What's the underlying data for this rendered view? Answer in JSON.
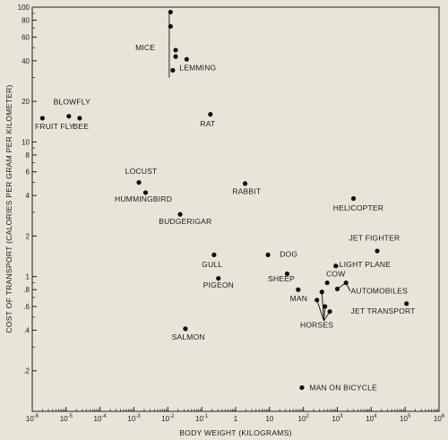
{
  "chart_data": {
    "type": "scatter",
    "xlabel": "BODY WEIGHT (KILOGRAMS)",
    "ylabel": "COST OF TRANSPORT (CALORIES PER GRAM PER KILOMETER)",
    "xscale": "log",
    "yscale": "log",
    "xlim": [
      1e-06,
      1000000.0
    ],
    "ylim": [
      0.1,
      100
    ],
    "grid": false,
    "x_ticks": [
      {
        "value": 1e-06,
        "base": "10",
        "exp": "-6"
      },
      {
        "value": 1e-05,
        "base": "10",
        "exp": "-5"
      },
      {
        "value": 0.0001,
        "base": "10",
        "exp": "-4"
      },
      {
        "value": 0.001,
        "base": "10",
        "exp": "-3"
      },
      {
        "value": 0.01,
        "base": "10",
        "exp": "-2"
      },
      {
        "value": 0.1,
        "base": "10",
        "exp": "-1"
      },
      {
        "value": 1,
        "base": "1",
        "exp": ""
      },
      {
        "value": 10,
        "base": "10",
        "exp": ""
      },
      {
        "value": 100,
        "base": "10",
        "exp": "2"
      },
      {
        "value": 1000,
        "base": "10",
        "exp": "3"
      },
      {
        "value": 10000.0,
        "base": "10",
        "exp": "4"
      },
      {
        "value": 100000.0,
        "base": "10",
        "exp": "5"
      },
      {
        "value": 1000000.0,
        "base": "10",
        "exp": "6"
      }
    ],
    "y_ticks": [
      {
        "value": 100,
        "label": "100"
      },
      {
        "value": 80,
        "label": "80"
      },
      {
        "value": 60,
        "label": "60"
      },
      {
        "value": 40,
        "label": "40"
      },
      {
        "value": 20,
        "label": "20"
      },
      {
        "value": 10,
        "label": "10"
      },
      {
        "value": 8,
        "label": "8"
      },
      {
        "value": 6,
        "label": "6"
      },
      {
        "value": 4,
        "label": "4"
      },
      {
        "value": 2,
        "label": "2"
      },
      {
        "value": 1,
        "label": "1"
      },
      {
        "value": 0.8,
        "label": ".8"
      },
      {
        "value": 0.6,
        "label": ".6"
      },
      {
        "value": 0.4,
        "label": ".4"
      },
      {
        "value": 0.2,
        "label": ".2"
      }
    ],
    "points": [
      {
        "x": 0.012,
        "y": 92,
        "group": "MICE"
      },
      {
        "x": 0.012,
        "y": 72,
        "group": "MICE"
      },
      {
        "x": 0.017,
        "y": 48,
        "group": "MICE"
      },
      {
        "x": 0.017,
        "y": 43,
        "group": "MICE"
      },
      {
        "x": 0.036,
        "y": 41,
        "group": "LEMMING"
      },
      {
        "x": 0.014,
        "y": 34,
        "group": "LEMMING"
      },
      {
        "x": 2e-06,
        "y": 15,
        "group": "FRUIT FLY"
      },
      {
        "x": 1.2e-05,
        "y": 15.5,
        "group": "BLOWFLY"
      },
      {
        "x": 2.5e-05,
        "y": 15,
        "group": "BEE"
      },
      {
        "x": 0.18,
        "y": 16,
        "group": "RAT"
      },
      {
        "x": 0.0014,
        "y": 5,
        "group": "LOCUST"
      },
      {
        "x": 0.0022,
        "y": 4.2,
        "group": "HUMMINGBIRD"
      },
      {
        "x": 0.023,
        "y": 2.9,
        "group": "BUDGERIGAR"
      },
      {
        "x": 1.9,
        "y": 4.9,
        "group": "RABBIT"
      },
      {
        "x": 3000,
        "y": 3.8,
        "group": "HELICOPTER"
      },
      {
        "x": 15000,
        "y": 1.55,
        "group": "JET FIGHTER"
      },
      {
        "x": 900,
        "y": 1.2,
        "group": "LIGHT PLANE"
      },
      {
        "x": 0.23,
        "y": 1.45,
        "group": "GULL"
      },
      {
        "x": 0.31,
        "y": 0.97,
        "group": "PIGEON"
      },
      {
        "x": 9,
        "y": 1.45,
        "group": "DOG"
      },
      {
        "x": 33,
        "y": 1.05,
        "group": "SHEEP"
      },
      {
        "x": 70,
        "y": 0.8,
        "group": "MAN"
      },
      {
        "x": 250,
        "y": 0.67,
        "group": "HORSES"
      },
      {
        "x": 350,
        "y": 0.77,
        "group": "HORSES"
      },
      {
        "x": 430,
        "y": 0.6,
        "group": "HORSES"
      },
      {
        "x": 600,
        "y": 0.55,
        "group": "HORSES"
      },
      {
        "x": 500,
        "y": 0.9,
        "group": "COW"
      },
      {
        "x": 1000,
        "y": 0.81,
        "group": "AUTOMOBILES"
      },
      {
        "x": 1800,
        "y": 0.9,
        "group": "AUTOMOBILES"
      },
      {
        "x": 110000,
        "y": 0.63,
        "group": "JET TRANSPORT"
      },
      {
        "x": 0.033,
        "y": 0.41,
        "group": "SALMON"
      },
      {
        "x": 90,
        "y": 0.15,
        "group": "MAN ON BICYCLE"
      }
    ],
    "labels": [
      {
        "text": "MICE",
        "x": 0.0011,
        "y": 48
      },
      {
        "text": "LEMMING",
        "x": 0.022,
        "y": 34
      },
      {
        "text": "BLOWFLY",
        "x": 4.2e-06,
        "y": 19
      },
      {
        "text": "FRUIT FLY",
        "x": 1.2e-06,
        "y": 12.5
      },
      {
        "text": "BEE",
        "x": 1.6e-05,
        "y": 12.5
      },
      {
        "text": "RAT",
        "x": 0.09,
        "y": 13
      },
      {
        "text": "LOCUST",
        "x": 0.00055,
        "y": 5.8
      },
      {
        "text": "HUMMINGBIRD",
        "x": 0.00027,
        "y": 3.6
      },
      {
        "text": "BUDGERIGAR",
        "x": 0.0054,
        "y": 2.45
      },
      {
        "text": "RABBIT",
        "x": 0.8,
        "y": 4.1
      },
      {
        "text": "HELICOPTER",
        "x": 750,
        "y": 3.1
      },
      {
        "text": "JET FIGHTER",
        "x": 2200,
        "y": 1.85
      },
      {
        "text": "LIGHT PLANE",
        "x": 1150,
        "y": 1.18
      },
      {
        "text": "GULL",
        "x": 0.1,
        "y": 1.18
      },
      {
        "text": "PIGEON",
        "x": 0.11,
        "y": 0.83
      },
      {
        "text": "DOG",
        "x": 20,
        "y": 1.4
      },
      {
        "text": "SHEEP",
        "x": 9,
        "y": 0.92
      },
      {
        "text": "COW",
        "x": 470,
        "y": 1.0
      },
      {
        "text": "MAN",
        "x": 40,
        "y": 0.66
      },
      {
        "text": "AUTOMOBILES",
        "x": 2500,
        "y": 0.75
      },
      {
        "text": "JET TRANSPORT",
        "x": 2500,
        "y": 0.53
      },
      {
        "text": "HORSES",
        "x": 80,
        "y": 0.42
      },
      {
        "text": "SALMON",
        "x": 0.013,
        "y": 0.34
      },
      {
        "text": "MAN ON BICYCLE",
        "x": 150,
        "y": 0.143
      }
    ]
  }
}
